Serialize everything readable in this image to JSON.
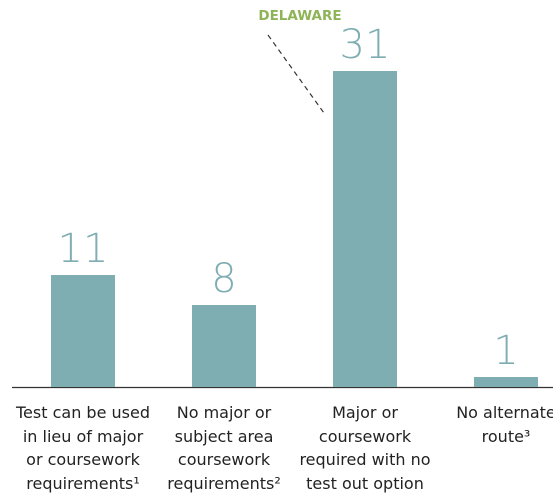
{
  "chart_data": {
    "type": "bar",
    "annotation": "DELAWARE",
    "categories": [
      "Test can be used in lieu of major or coursework requirements¹",
      "No major or subject area coursework requirements²",
      "Major or coursework required with no test out option",
      "No alternate route³"
    ],
    "values": [
      11,
      8,
      31,
      1
    ],
    "color": "#7eadb2",
    "label_color": "#7eadb2",
    "annotation_color": "#8db456"
  }
}
